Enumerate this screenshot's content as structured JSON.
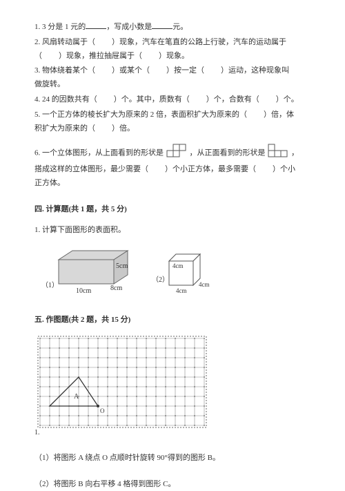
{
  "questions": {
    "q1_a": "1. 3 分是 1 元的",
    "q1_b": "，写成小数是",
    "q1_c": "元。",
    "q2_a": "2. 风扇转动属于（",
    "q2_b": "）现象，汽车在笔直的公路上行驶，汽车的运动属于",
    "q2_c": "（",
    "q2_d": "）现象，推拉抽屉属于（",
    "q2_e": "）现象。",
    "q3_a": "3. 物体绕着某个（",
    "q3_b": "）或某个（",
    "q3_c": "）按一定（",
    "q3_d": "）运动，这种现象叫",
    "q3_e": "做旋转。",
    "q4_a": "4. 24 的因数共有（",
    "q4_b": "）个。其中，质数有（",
    "q4_c": "）个，合数有（",
    "q4_d": "）个。",
    "q5_a": "5. 一个正方体的棱长扩大为原来的 2 倍，表面积扩大为原来的（",
    "q5_b": "）倍，体",
    "q5_c": "积扩大为原来的（",
    "q5_d": "）倍。",
    "q6_a": "6. 一个立体图形，从上面看到的形状是",
    "q6_b": "，从正面看到的形状是",
    "q6_c": "，",
    "q6_d": "搭成这样的立体图形，最少需要（",
    "q6_e": "）个小正方体，最多需要（",
    "q6_f": "）个小",
    "q6_g": "正方体。"
  },
  "sections": {
    "s4_title": "四. 计算题(共 1 题，共 5 分)",
    "s4_q1": "1. 计算下面图形的表面积。",
    "s5_title": "五. 作图题(共 2 题，共 15 分)",
    "s5_sub1": "（1）将图形 A 绕点 O 点顺时针旋转 90°得到的图形 B。",
    "s5_sub2": "（2）将图形 B 向右平移 4 格得到图形 C。",
    "s5_q1_num": "1."
  },
  "figure1": {
    "label1": "（1）",
    "label2": "（2）",
    "dim_w": "10cm",
    "dim_h": "5cm",
    "dim_d": "8cm",
    "cube_dim": "4cm",
    "box_fill": "#d8d8d8",
    "box_stroke": "#666666",
    "cube_fill": "#ffffff",
    "cube_stroke": "#555555",
    "text_color": "#333333"
  },
  "figure2": {
    "grid_color": "#888888",
    "dot_color": "#666666",
    "tri_stroke": "#333333",
    "label_A": "A",
    "label_O": "O",
    "cols": 17,
    "rows": 9,
    "cell": 14
  },
  "shapes": {
    "stroke": "#555555",
    "fill": "#ffffff",
    "cell": 9
  }
}
